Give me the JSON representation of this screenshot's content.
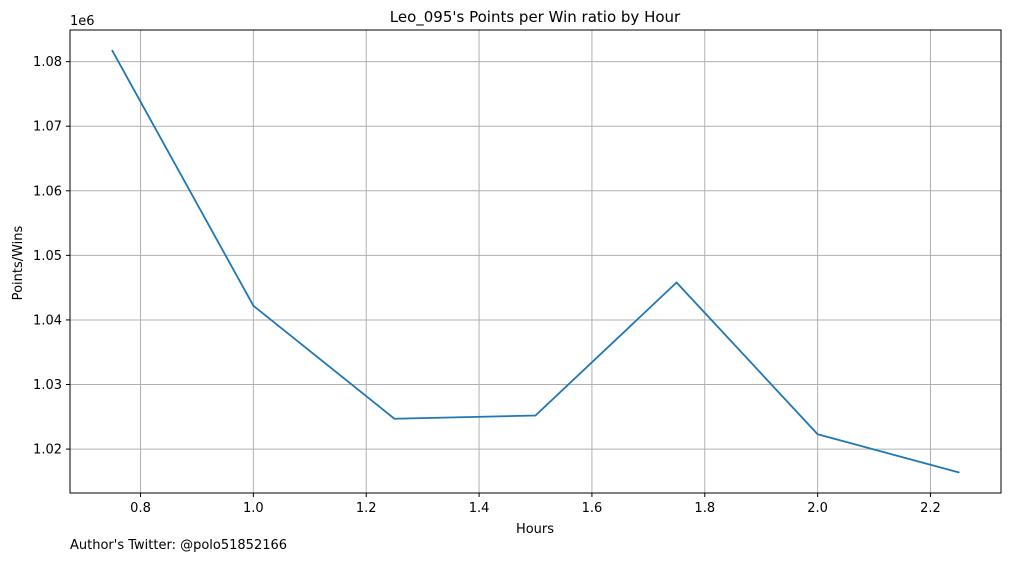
{
  "chart_data": {
    "type": "line",
    "title": "Leo_095's Points per Win ratio by Hour",
    "xlabel": "Hours",
    "ylabel": "Points/Wins",
    "y_offset_label": "1e6",
    "xlim": [
      0.675,
      2.325
    ],
    "ylim": [
      1.0132,
      1.0849
    ],
    "x_ticks": [
      0.8,
      1.0,
      1.2,
      1.4,
      1.6,
      1.8,
      2.0,
      2.2
    ],
    "y_ticks": [
      1.02,
      1.03,
      1.04,
      1.05,
      1.06,
      1.07,
      1.08
    ],
    "grid": true,
    "series": [
      {
        "color": "#1f77b4",
        "x": [
          0.75,
          1.0,
          1.25,
          1.5,
          1.75,
          2.0,
          2.25
        ],
        "y": [
          1.0817,
          1.0422,
          1.0247,
          1.0252,
          1.0458,
          1.0223,
          1.0164
        ]
      }
    ]
  },
  "footer": {
    "text": "Author's Twitter: @polo51852166"
  }
}
